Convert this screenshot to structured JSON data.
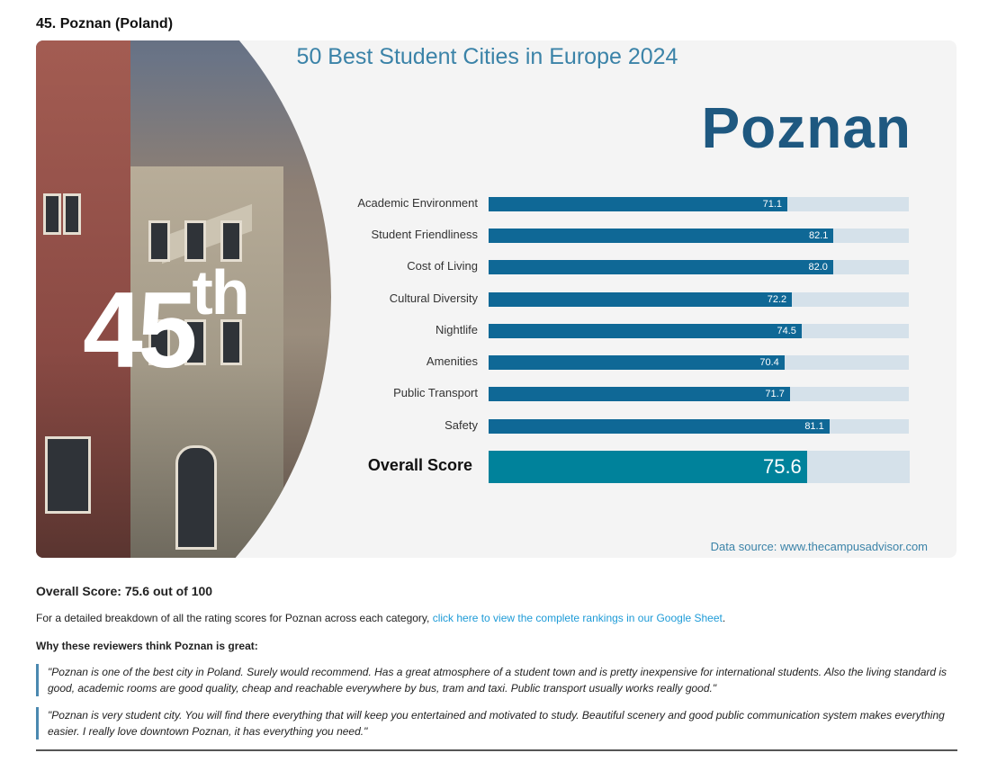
{
  "heading": "45. Poznan (Poland)",
  "infographic": {
    "title": "50 Best Student Cities in Europe 2024",
    "city": "Poznan",
    "rank_number": "45",
    "rank_suffix": "th",
    "source": "Data source: www.thecampusadvisor.com"
  },
  "chart_data": {
    "type": "bar",
    "orientation": "horizontal",
    "title": "50 Best Student Cities in Europe 2024",
    "xlim": [
      0,
      100
    ],
    "categories": [
      "Academic Environment",
      "Student Friendliness",
      "Cost of Living",
      "Cultural Diversity",
      "Nightlife",
      "Amenities",
      "Public Transport",
      "Safety"
    ],
    "values": [
      71.1,
      82.1,
      82.0,
      72.2,
      74.5,
      70.4,
      71.7,
      81.1
    ],
    "labels": [
      "71.1",
      "82.1",
      "82.0",
      "72.2",
      "74.5",
      "70.4",
      "71.7",
      "81.1"
    ],
    "overall": {
      "label": "Overall Score",
      "value": 75.6,
      "text": "75.6"
    },
    "colors": {
      "bar": "#0f6896",
      "track": "#d5e1ea",
      "overall": "#00829b"
    }
  },
  "overall_score_text": "Overall Score: 75.6 out of 100",
  "breakdown": {
    "text": "For a detailed breakdown of all the rating scores for Poznan across each category, ",
    "link": "click here to view the complete rankings in our Google Sheet",
    "end": "."
  },
  "why_heading": "Why these reviewers think Poznan is great:",
  "quotes": [
    "\"Poznan is one of the best city in Poland. Surely would recommend. Has a great atmosphere of a student town and is pretty inexpensive for international students. Also the living standard is good, academic rooms are good quality, cheap and reachable everywhere by bus, tram and taxi. Public transport usually works really good.\"",
    "\"Poznan is very student city. You will find there everything that will keep you entertained and motivated to study. Beautiful scenery and good public communication system makes everything easier. I really love downtown Poznan, it has everything you need.\""
  ]
}
